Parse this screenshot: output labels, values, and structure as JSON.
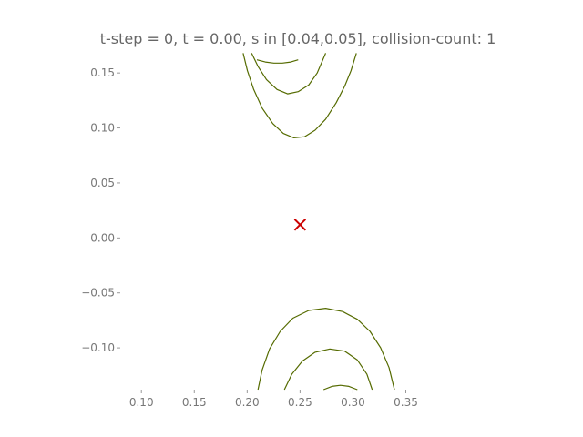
{
  "chart_data": {
    "type": "line",
    "title": "t-step = 0, t = 0.00, s in [0.04,0.05], collision-count: 1",
    "xlabel": "",
    "ylabel": "",
    "xlim": [
      0.08,
      0.378
    ],
    "ylim": [
      -0.138,
      0.17
    ],
    "xticks": [
      "0.10",
      "0.15",
      "0.20",
      "0.25",
      "0.30",
      "0.35"
    ],
    "xtick_values": [
      0.1,
      0.15,
      0.2,
      0.25,
      0.3,
      0.35
    ],
    "yticks": [
      "−0.10",
      "−0.05",
      "0.00",
      "0.05",
      "0.10",
      "0.15"
    ],
    "ytick_values": [
      -0.1,
      -0.05,
      0.0,
      0.05,
      0.1,
      0.15
    ],
    "grid": false,
    "line_color": "#556b00",
    "marker_color": "#cc0000",
    "marker": {
      "x": 0.25,
      "y": 0.012,
      "symbol": "x"
    },
    "series": [
      {
        "values": [
          [
            0.1962,
            0.168
          ],
          [
            0.2002,
            0.152
          ],
          [
            0.2062,
            0.135
          ],
          [
            0.2142,
            0.118
          ],
          [
            0.2242,
            0.104
          ],
          [
            0.2342,
            0.095
          ],
          [
            0.2442,
            0.091
          ],
          [
            0.2542,
            0.092
          ],
          [
            0.2642,
            0.098
          ],
          [
            0.2742,
            0.108
          ],
          [
            0.2842,
            0.123
          ],
          [
            0.2922,
            0.138
          ],
          [
            0.2982,
            0.152
          ],
          [
            0.3032,
            0.168
          ]
        ]
      },
      {
        "values": [
          [
            0.2042,
            0.168
          ],
          [
            0.2102,
            0.156
          ],
          [
            0.2182,
            0.144
          ],
          [
            0.2282,
            0.135
          ],
          [
            0.2382,
            0.131
          ],
          [
            0.2482,
            0.133
          ],
          [
            0.2582,
            0.139
          ],
          [
            0.2662,
            0.15
          ],
          [
            0.2742,
            0.168
          ]
        ]
      },
      {
        "values": [
          [
            0.2092,
            0.162
          ],
          [
            0.2172,
            0.16
          ],
          [
            0.2252,
            0.159
          ],
          [
            0.2332,
            0.159
          ],
          [
            0.2412,
            0.16
          ],
          [
            0.2482,
            0.162
          ]
        ]
      },
      {
        "values": [
          [
            0.2102,
            -0.138
          ],
          [
            0.2142,
            -0.12
          ],
          [
            0.2212,
            -0.101
          ],
          [
            0.2312,
            -0.085
          ],
          [
            0.2432,
            -0.073
          ],
          [
            0.2582,
            -0.066
          ],
          [
            0.2742,
            -0.064
          ],
          [
            0.2902,
            -0.067
          ],
          [
            0.3042,
            -0.074
          ],
          [
            0.3162,
            -0.085
          ],
          [
            0.3262,
            -0.1
          ],
          [
            0.3342,
            -0.118
          ],
          [
            0.3392,
            -0.138
          ]
        ]
      },
      {
        "values": [
          [
            0.2352,
            -0.138
          ],
          [
            0.2422,
            -0.124
          ],
          [
            0.2522,
            -0.112
          ],
          [
            0.2642,
            -0.104
          ],
          [
            0.2782,
            -0.101
          ],
          [
            0.2922,
            -0.103
          ],
          [
            0.3042,
            -0.111
          ],
          [
            0.3132,
            -0.124
          ],
          [
            0.3182,
            -0.138
          ]
        ]
      },
      {
        "values": [
          [
            0.2722,
            -0.138
          ],
          [
            0.2802,
            -0.135
          ],
          [
            0.2882,
            -0.134
          ],
          [
            0.2962,
            -0.135
          ],
          [
            0.3042,
            -0.138
          ]
        ]
      }
    ]
  }
}
